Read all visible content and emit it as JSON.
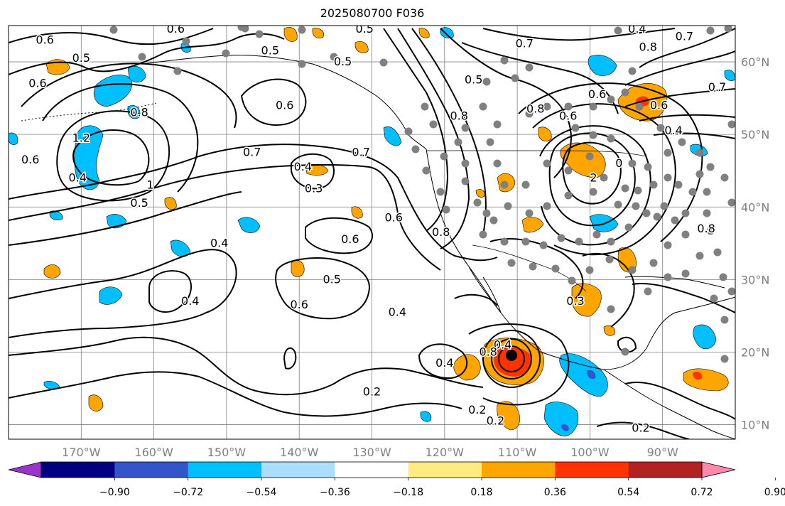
{
  "title": "2025080700 F036",
  "map": {
    "lon_range": [
      -180,
      -80
    ],
    "lat_range": [
      8,
      65
    ],
    "grid_color": "#808080",
    "lat_ticks": [
      {
        "value": 60,
        "label": "60°N"
      },
      {
        "value": 50,
        "label": "50°N"
      },
      {
        "value": 40,
        "label": "40°N"
      },
      {
        "value": 30,
        "label": "30°N"
      },
      {
        "value": 20,
        "label": "20°N"
      },
      {
        "value": 10,
        "label": "10°N"
      }
    ],
    "lon_ticks": [
      {
        "value": -170,
        "label": "170°W"
      },
      {
        "value": -160,
        "label": "160°W"
      },
      {
        "value": -150,
        "label": "150°W"
      },
      {
        "value": -140,
        "label": "140°W"
      },
      {
        "value": -130,
        "label": "130°W"
      },
      {
        "value": -120,
        "label": "120°W"
      },
      {
        "value": -110,
        "label": "110°W"
      },
      {
        "value": -100,
        "label": "100°W"
      },
      {
        "value": -90,
        "label": "90°W"
      }
    ],
    "contour_labels": [
      {
        "text": "0.6",
        "lon": -175,
        "lat": 63
      },
      {
        "text": "0.5",
        "lon": -170,
        "lat": 60.5
      },
      {
        "text": "0.6",
        "lon": -176,
        "lat": 57
      },
      {
        "text": "0.8",
        "lon": -162,
        "lat": 53
      },
      {
        "text": "1.2",
        "lon": -170,
        "lat": 49.5
      },
      {
        "text": "0.6",
        "lon": -177,
        "lat": 46.5
      },
      {
        "text": "0.4",
        "lon": -170.5,
        "lat": 44
      },
      {
        "text": "1",
        "lon": -160.5,
        "lat": 43
      },
      {
        "text": "0.5",
        "lon": -162,
        "lat": 40.5
      },
      {
        "text": "0.6",
        "lon": -157,
        "lat": 64.5
      },
      {
        "text": "0.5",
        "lon": -144,
        "lat": 61.5
      },
      {
        "text": "0.5",
        "lon": -131,
        "lat": 64.5
      },
      {
        "text": "0.5",
        "lon": -134,
        "lat": 60
      },
      {
        "text": "0.6",
        "lon": -142,
        "lat": 54
      },
      {
        "text": "0.7",
        "lon": -146.5,
        "lat": 47.5
      },
      {
        "text": "0.4",
        "lon": -139.5,
        "lat": 45.5
      },
      {
        "text": "0.3",
        "lon": -138,
        "lat": 42.5
      },
      {
        "text": "0.7",
        "lon": -131.5,
        "lat": 47.5
      },
      {
        "text": "0.6",
        "lon": -127,
        "lat": 38.5
      },
      {
        "text": "0.6",
        "lon": -133,
        "lat": 35.5
      },
      {
        "text": "0.8",
        "lon": -120.5,
        "lat": 36.5
      },
      {
        "text": "0.4",
        "lon": -151,
        "lat": 35
      },
      {
        "text": "0.4",
        "lon": -155,
        "lat": 27
      },
      {
        "text": "0.5",
        "lon": -135.5,
        "lat": 30
      },
      {
        "text": "0.6",
        "lon": -140,
        "lat": 26.5
      },
      {
        "text": "0.4",
        "lon": -126.5,
        "lat": 25.5
      },
      {
        "text": "0.4",
        "lon": -120,
        "lat": 18.5
      },
      {
        "text": "0.2",
        "lon": -130,
        "lat": 14.5
      },
      {
        "text": "0.2",
        "lon": -115.5,
        "lat": 12
      },
      {
        "text": "0.4",
        "lon": -112,
        "lat": 21
      },
      {
        "text": "0.8",
        "lon": -114,
        "lat": 20
      },
      {
        "text": "0.2",
        "lon": -113,
        "lat": 10.5
      },
      {
        "text": "0.3",
        "lon": -102,
        "lat": 27
      },
      {
        "text": "0.2",
        "lon": -93,
        "lat": 9.5
      },
      {
        "text": "0.8",
        "lon": -118,
        "lat": 52.5
      },
      {
        "text": "0.7",
        "lon": -109,
        "lat": 62.5
      },
      {
        "text": "0.5",
        "lon": -116,
        "lat": 57.5
      },
      {
        "text": "0.8",
        "lon": -107.5,
        "lat": 53.5
      },
      {
        "text": "0.6",
        "lon": -103,
        "lat": 52.5
      },
      {
        "text": "0.6",
        "lon": -99,
        "lat": 55.5
      },
      {
        "text": "0.8",
        "lon": -92,
        "lat": 62
      },
      {
        "text": "0.4",
        "lon": -93.5,
        "lat": 64.5
      },
      {
        "text": "0.7",
        "lon": -87,
        "lat": 63.5
      },
      {
        "text": "0.6",
        "lon": -90.5,
        "lat": 54
      },
      {
        "text": "0.4",
        "lon": -88.5,
        "lat": 50.5
      },
      {
        "text": "2",
        "lon": -99.5,
        "lat": 44
      },
      {
        "text": "0",
        "lon": -96,
        "lat": 46
      },
      {
        "text": "0.7",
        "lon": -82.5,
        "lat": 56.5
      },
      {
        "text": "0.8",
        "lon": -84,
        "lat": 37
      }
    ]
  },
  "colorbar": {
    "colors": [
      "#9933cc",
      "#000080",
      "#3355cc",
      "#00bfff",
      "#aadeff",
      "#ffffff",
      "#ffeb80",
      "#ffa500",
      "#ff3300",
      "#b22222",
      "#ff88aa"
    ],
    "tick_labels": [
      "−0.90",
      "−0.72",
      "−0.54",
      "−0.36",
      "−0.18",
      "0.18",
      "0.36",
      "0.54",
      "0.72",
      "0.90"
    ]
  }
}
